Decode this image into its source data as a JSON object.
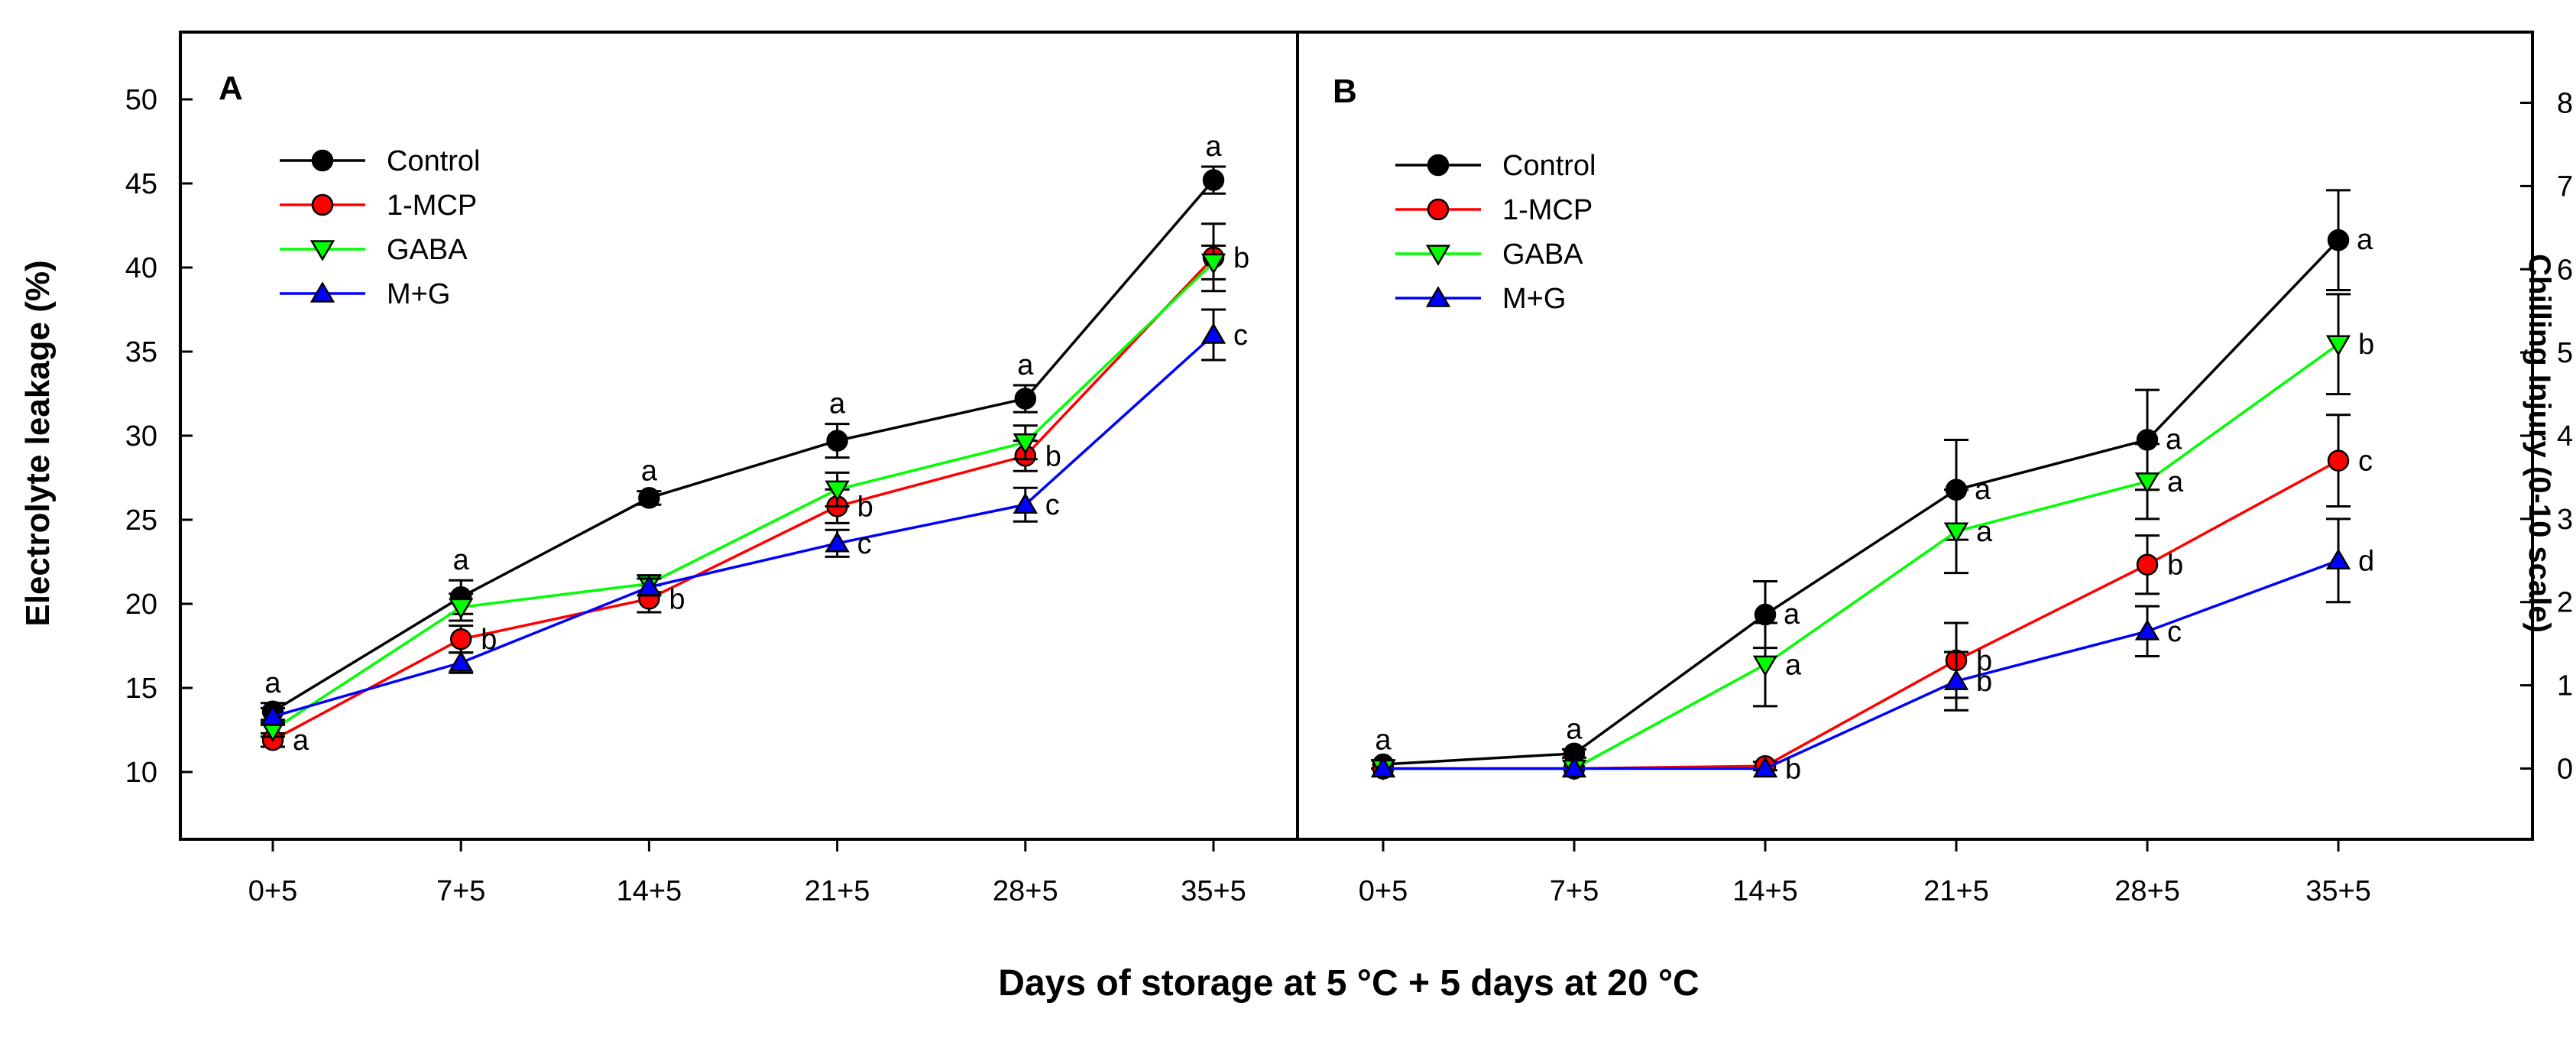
{
  "colors": {
    "Control": "#000000",
    "1-MCP": "#ff0000",
    "GABA": "#00ff00",
    "M+G": "#0000ff"
  },
  "x_title": "Days of storage at 5 °C + 5 days at 20 °C",
  "chart_data": [
    {
      "type": "line",
      "panel": "A",
      "ylabel": "Electrolyte leakage (%)",
      "categories": [
        "0+5",
        "7+5",
        "14+5",
        "21+5",
        "28+5",
        "35+5"
      ],
      "ylim": [
        6,
        54
      ],
      "yticks": [
        10,
        15,
        20,
        25,
        30,
        35,
        40,
        45,
        50
      ],
      "legend": [
        "Control",
        "1-MCP",
        "GABA",
        "M+G"
      ],
      "series": [
        {
          "name": "Control",
          "marker": "circle",
          "values": [
            13.6,
            20.4,
            26.3,
            29.7,
            32.2,
            45.2
          ],
          "errors": [
            0.5,
            1.0,
            0.4,
            1.0,
            0.8,
            0.8
          ],
          "letters": [
            "a",
            "a",
            "a",
            "a",
            "a",
            "a"
          ]
        },
        {
          "name": "1-MCP",
          "marker": "circle",
          "values": [
            11.9,
            17.9,
            20.3,
            25.8,
            28.8,
            40.6
          ],
          "errors": [
            0.4,
            0.8,
            0.8,
            1.0,
            0.9,
            2.0
          ],
          "letters": [
            "a",
            "b",
            "b",
            "b",
            "b",
            "b"
          ]
        },
        {
          "name": "GABA",
          "marker": "triangle-down",
          "values": [
            12.5,
            19.8,
            21.2,
            26.8,
            29.6,
            40.3
          ],
          "errors": [
            0.4,
            0.8,
            0.5,
            1.0,
            1.0,
            1.0
          ],
          "letters": [
            "",
            "",
            "",
            "",
            "",
            ""
          ]
        },
        {
          "name": "M+G",
          "marker": "triangle-up",
          "values": [
            13.3,
            16.5,
            21.0,
            23.6,
            25.9,
            36.0
          ],
          "errors": [
            0.5,
            0.6,
            0.5,
            0.8,
            1.0,
            1.5
          ],
          "letters": [
            "",
            "",
            "",
            "c",
            "c",
            "c"
          ]
        }
      ]
    },
    {
      "type": "line",
      "panel": "B",
      "ylabel": "Chilling Injury (0-10 scale)",
      "categories": [
        "0+5",
        "7+5",
        "14+5",
        "21+5",
        "28+5",
        "35+5"
      ],
      "ylim": [
        -0.85,
        8.85
      ],
      "yticks": [
        0,
        1,
        2,
        3,
        4,
        5,
        6,
        7,
        8
      ],
      "legend": [
        "Control",
        "1-MCP",
        "GABA",
        "M+G"
      ],
      "series": [
        {
          "name": "Control",
          "marker": "circle",
          "values": [
            0.05,
            0.18,
            1.85,
            3.35,
            3.95,
            6.35
          ],
          "errors": [
            0.05,
            0.05,
            0.4,
            0.6,
            0.6,
            0.6
          ],
          "letters": [
            "a",
            "a",
            "a",
            "a",
            "a",
            "a"
          ]
        },
        {
          "name": "1-MCP",
          "marker": "circle",
          "values": [
            0.0,
            0.0,
            0.03,
            1.3,
            2.45,
            3.7
          ],
          "errors": [
            0.0,
            0.0,
            0.05,
            0.45,
            0.35,
            0.55
          ],
          "letters": [
            "",
            "",
            "",
            "b",
            "b",
            "c"
          ]
        },
        {
          "name": "GABA",
          "marker": "triangle-down",
          "values": [
            0.0,
            0.0,
            1.25,
            2.85,
            3.45,
            5.1
          ],
          "errors": [
            0.0,
            0.0,
            0.5,
            0.5,
            0.45,
            0.6
          ],
          "letters": [
            "",
            "",
            "a",
            "a",
            "a",
            "b"
          ]
        },
        {
          "name": "M+G",
          "marker": "triangle-up",
          "values": [
            0.0,
            0.0,
            0.0,
            1.05,
            1.65,
            2.5
          ],
          "errors": [
            0.0,
            0.0,
            0.0,
            0.35,
            0.3,
            0.5
          ],
          "letters": [
            "",
            "",
            "b",
            "b",
            "c",
            "d"
          ]
        }
      ]
    }
  ]
}
